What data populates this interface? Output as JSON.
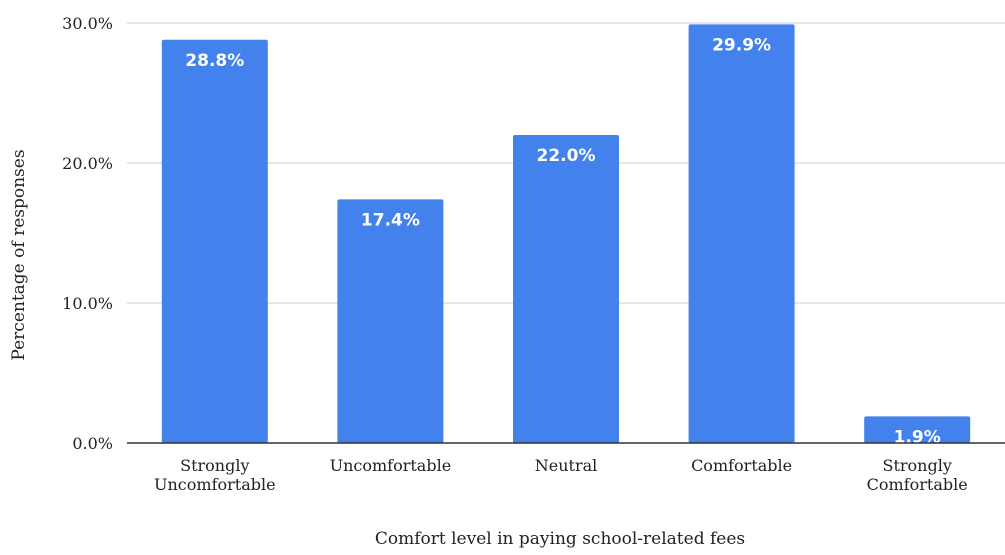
{
  "chart_data": {
    "type": "bar",
    "title": "",
    "xlabel": "Comfort level in paying school-related fees",
    "ylabel": "Percentage of responses",
    "categories": [
      [
        "Strongly",
        "Uncomfortable"
      ],
      [
        "Uncomfortable"
      ],
      [
        "Neutral"
      ],
      [
        "Comfortable"
      ],
      [
        "Strongly",
        "Comfortable"
      ]
    ],
    "values": [
      28.8,
      17.4,
      22.0,
      29.9,
      1.9
    ],
    "data_labels": [
      "28.8%",
      "17.4%",
      "22.0%",
      "29.9%",
      "1.9%"
    ],
    "ylim": [
      0,
      30
    ],
    "yticks": [
      0,
      10,
      20,
      30
    ],
    "ytick_labels": [
      "0.0%",
      "10.0%",
      "20.0%",
      "30.0%"
    ],
    "grid": true,
    "legend": "none",
    "colors": {
      "bar": "#4381ec",
      "grid": "#cccccc",
      "axis": "#333333"
    }
  }
}
